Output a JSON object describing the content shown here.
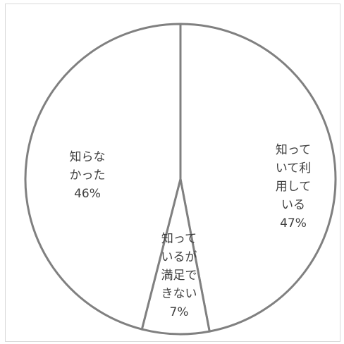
{
  "chart_data": {
    "type": "pie",
    "title": "",
    "start_angle_deg": 0,
    "direction": "clockwise",
    "slices": [
      {
        "label_lines": [
          "知って",
          "いて利",
          "用して",
          "いる"
        ],
        "pct_label": "47%",
        "value": 47,
        "color": "#ffffff"
      },
      {
        "label_lines": [
          "知って",
          "いるが",
          "満足で",
          "きない"
        ],
        "pct_label": "7%",
        "value": 7,
        "color": "#ffffff"
      },
      {
        "label_lines": [
          "知らな",
          "かった"
        ],
        "pct_label": "46%",
        "value": 46,
        "color": "#ffffff"
      }
    ],
    "slice_stroke": "#808080",
    "label_color": "#404040",
    "legend": "none",
    "data_labels": "inside"
  }
}
